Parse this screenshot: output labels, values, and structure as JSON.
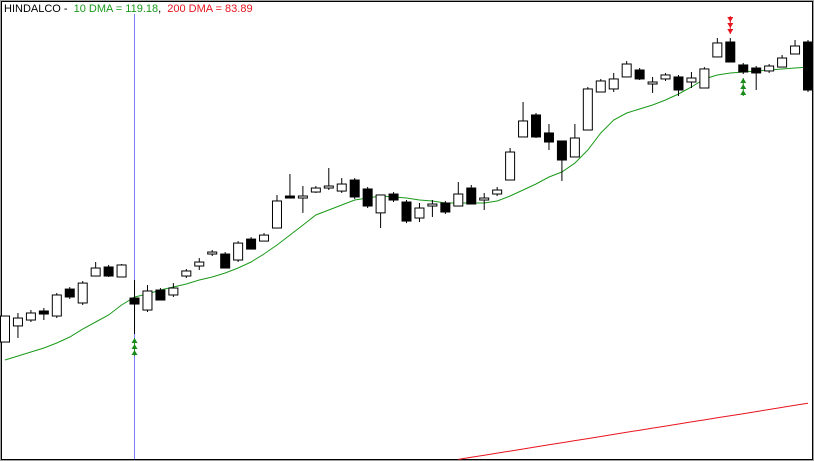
{
  "chart_data": {
    "type": "candlestick",
    "title": "HINDALCO -",
    "separator": ",",
    "ylim": [
      77.82,
      126.22
    ],
    "up_color": "#ffffff",
    "down_color": "#000000",
    "open": [
      90.31,
      92.0,
      92.62,
      93.57,
      93.04,
      95.87,
      94.41,
      97.24,
      98.19,
      97.14,
      94.93,
      93.67,
      95.77,
      95.25,
      97.24,
      98.29,
      99.55,
      99.55,
      98.92,
      101.12,
      100.91,
      102.28,
      105.64,
      105.43,
      106.06,
      106.48,
      106.16,
      107.32,
      106.38,
      103.87,
      105.85,
      105.01,
      103.33,
      104.59,
      104.91,
      104.59,
      106.48,
      105.22,
      105.85,
      107.32,
      111.84,
      114.15,
      112.26,
      111.42,
      109.74,
      112.57,
      116.56,
      116.88,
      118.14,
      118.87,
      117.4,
      117.93,
      118.14,
      117.61,
      116.98,
      120.24,
      121.81,
      119.4,
      119.08,
      118.77,
      119.18,
      120.55,
      121.81
    ],
    "high": [
      93.04,
      93.36,
      93.67,
      93.88,
      95.46,
      96.08,
      96.71,
      98.71,
      98.4,
      98.5,
      96.82,
      96.29,
      95.98,
      96.5,
      97.98,
      99.13,
      99.97,
      99.76,
      100.91,
      101.33,
      101.75,
      105.75,
      107.95,
      106.69,
      106.69,
      108.58,
      107.53,
      107.53,
      106.59,
      105.75,
      106.06,
      105.22,
      104.91,
      105.22,
      105.12,
      107.11,
      106.8,
      105.96,
      106.59,
      110.68,
      115.51,
      114.36,
      113.2,
      111.42,
      113.2,
      117.09,
      117.93,
      118.56,
      119.82,
      119.08,
      118.14,
      118.56,
      118.35,
      118.66,
      119.18,
      122.23,
      122.23,
      119.61,
      119.29,
      119.5,
      120.45,
      122.02,
      122.02
    ],
    "low": [
      90.31,
      90.73,
      92.41,
      92.62,
      92.83,
      94.83,
      94.2,
      97.24,
      97.14,
      97.14,
      91.15,
      93.46,
      94.72,
      95.04,
      97.03,
      97.87,
      99.34,
      98.08,
      98.71,
      100.07,
      100.91,
      102.28,
      105.43,
      103.87,
      105.96,
      106.27,
      105.96,
      105.33,
      104.38,
      102.28,
      105.01,
      102.8,
      102.91,
      103.44,
      103.75,
      104.59,
      104.8,
      104.17,
      105.64,
      107.32,
      111.84,
      111.73,
      110.47,
      107.22,
      109.74,
      112.57,
      116.56,
      116.56,
      118.14,
      117.82,
      116.46,
      117.72,
      116.14,
      116.98,
      116.98,
      120.24,
      119.71,
      118.45,
      116.77,
      118.56,
      119.18,
      120.55,
      116.56
    ],
    "close": [
      93.04,
      92.83,
      93.36,
      93.25,
      95.25,
      95.04,
      96.5,
      98.08,
      97.24,
      98.4,
      94.3,
      95.67,
      94.72,
      95.98,
      97.77,
      98.71,
      99.76,
      98.08,
      100.7,
      100.07,
      101.54,
      105.12,
      105.43,
      105.64,
      106.48,
      106.69,
      106.9,
      105.54,
      104.59,
      105.75,
      105.22,
      103.01,
      104.38,
      104.8,
      103.96,
      105.85,
      104.8,
      105.43,
      106.27,
      110.26,
      113.52,
      111.84,
      111.31,
      109.42,
      111.73,
      116.88,
      117.72,
      117.93,
      119.5,
      117.93,
      117.61,
      118.35,
      116.77,
      118.03,
      118.98,
      121.71,
      119.71,
      118.66,
      118.56,
      119.29,
      120.13,
      121.39,
      116.77
    ],
    "series": [
      {
        "name": "10 DMA = 119.18",
        "color": "#1a9a1a",
        "values": [
          88.42,
          88.84,
          89.26,
          89.68,
          90.21,
          90.84,
          91.67,
          92.41,
          93.15,
          94.2,
          95.04,
          95.35,
          95.77,
          96.09,
          96.4,
          96.82,
          97.14,
          97.56,
          98.08,
          98.71,
          99.55,
          100.5,
          101.54,
          102.59,
          103.65,
          104.17,
          104.7,
          105.22,
          105.43,
          105.64,
          105.54,
          105.43,
          105.22,
          105.12,
          104.91,
          104.91,
          104.91,
          104.91,
          105.12,
          105.64,
          106.27,
          106.9,
          107.64,
          108.16,
          109.1,
          110.47,
          112.26,
          113.62,
          114.36,
          114.78,
          115.2,
          115.72,
          116.35,
          117.09,
          117.93,
          118.35,
          118.56,
          118.66,
          118.77,
          118.87,
          118.98,
          119.08,
          119.18
        ]
      },
      {
        "name": "200 DMA = 83.89",
        "color": "#e8141e",
        "values": [
          null,
          null,
          null,
          null,
          null,
          null,
          null,
          null,
          null,
          null,
          null,
          null,
          null,
          null,
          null,
          null,
          null,
          null,
          null,
          null,
          null,
          null,
          null,
          null,
          null,
          null,
          null,
          null,
          null,
          null,
          null,
          null,
          null,
          null,
          null,
          77.99,
          78.21,
          78.43,
          78.65,
          78.86,
          79.08,
          79.3,
          79.52,
          79.74,
          79.96,
          80.17,
          80.39,
          80.61,
          80.83,
          81.05,
          81.27,
          81.48,
          81.7,
          81.92,
          82.14,
          82.36,
          82.58,
          82.79,
          83.01,
          83.23,
          83.45,
          83.67,
          83.89
        ]
      }
    ],
    "buy_signals": [
      10,
      57
    ],
    "sell_signals": [
      56
    ],
    "buy_color": "#1a8a1a",
    "sell_color": "#e8141e",
    "cursor_index": 10,
    "cursor_color": "#7a7aff"
  }
}
